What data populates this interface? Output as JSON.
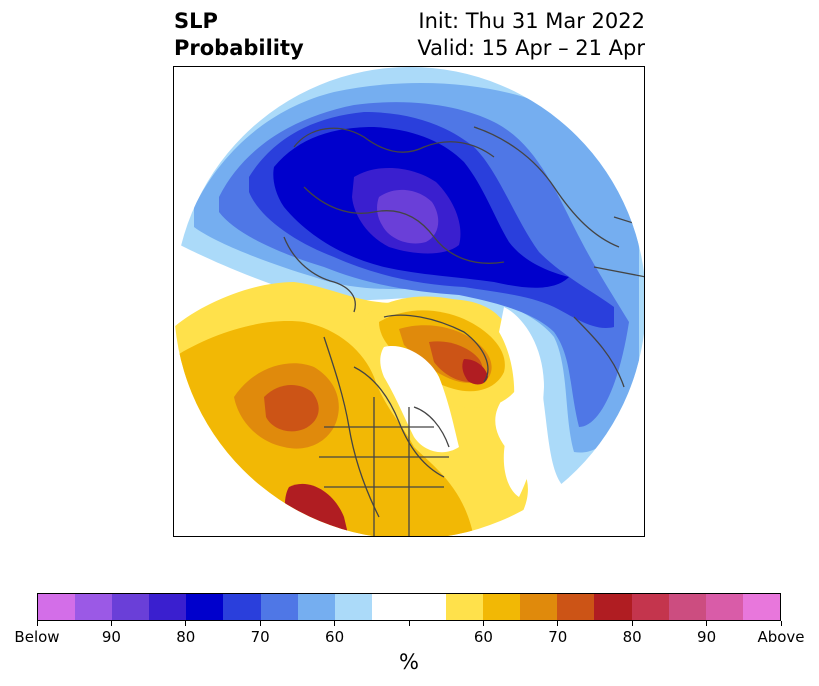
{
  "title": {
    "left_line1": "SLP",
    "left_line2": "Probability",
    "right_line1": "Init: Thu 31 Mar 2022",
    "right_line2": "Valid: 15 Apr – 21 Apr"
  },
  "colorbar": {
    "colors": [
      "#d36ee8",
      "#9b59e6",
      "#6a3fd8",
      "#3a1fcf",
      "#0000cc",
      "#2a3fdc",
      "#4f77e6",
      "#75aef0",
      "#abdaf9",
      "#ffffff",
      "#ffffff",
      "#ffe14b",
      "#f2b805",
      "#e08a0c",
      "#cc5416",
      "#b01d22",
      "#c4354d",
      "#cc4d80",
      "#d95ca8",
      "#e877dc"
    ],
    "tick_labels": [
      "Below",
      "90",
      "80",
      "70",
      "60",
      "",
      "60",
      "70",
      "80",
      "90",
      "Above"
    ],
    "unit": "%"
  },
  "map": {
    "colors": {
      "blue_60": "#abdaf9",
      "blue_65": "#75aef0",
      "blue_70": "#4f77e6",
      "blue_75": "#2a3fdc",
      "blue_80": "#0000cc",
      "blue_85": "#3a1fcf",
      "blue_90": "#6a3fd8",
      "yellow_60": "#ffe14b",
      "orange_65": "#f2b805",
      "orange_70": "#e08a0c",
      "orange_75": "#cc5416",
      "red_80": "#b01d22"
    }
  }
}
